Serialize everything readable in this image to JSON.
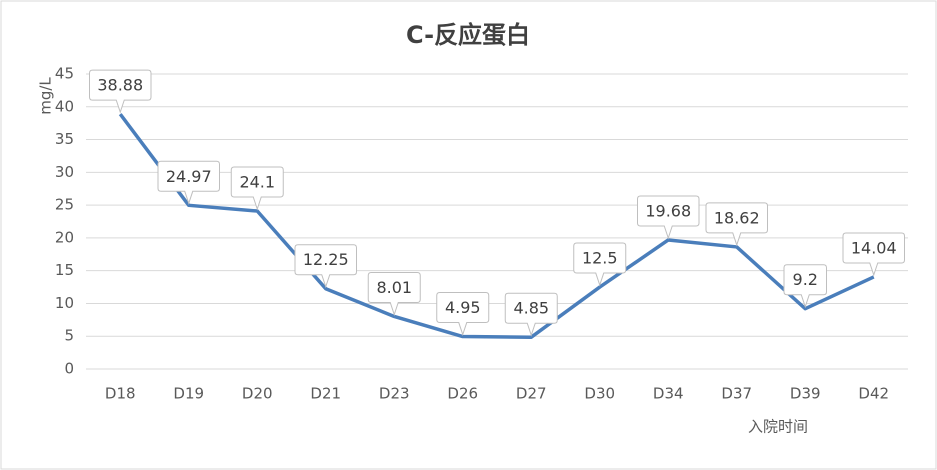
{
  "chart_data": {
    "type": "line",
    "title": "C-反应蛋白",
    "y_label": "mg/L",
    "x_label": "入院时间",
    "categories": [
      "D18",
      "D19",
      "D20",
      "D21",
      "D23",
      "D26",
      "D27",
      "D30",
      "D34",
      "D37",
      "D39",
      "D42"
    ],
    "series": [
      {
        "name": "C-反应蛋白",
        "color": "#4a7ebb",
        "values": [
          38.88,
          24.97,
          24.1,
          12.25,
          8.01,
          4.95,
          4.85,
          12.5,
          19.68,
          18.62,
          9.2,
          14.04
        ]
      }
    ],
    "ylim": [
      0,
      45
    ],
    "yticks": [
      0,
      5,
      10,
      15,
      20,
      25,
      30,
      35,
      40,
      45
    ],
    "grid": true
  }
}
